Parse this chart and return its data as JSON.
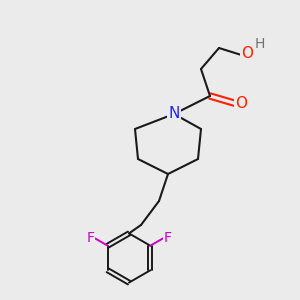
{
  "background_color": "#ebebeb",
  "bond_color": "#1a1a1a",
  "atom_colors": {
    "N": "#2222ff",
    "O": "#ff2200",
    "H": "#707070",
    "F": "#cc00cc"
  },
  "font_size": 10
}
